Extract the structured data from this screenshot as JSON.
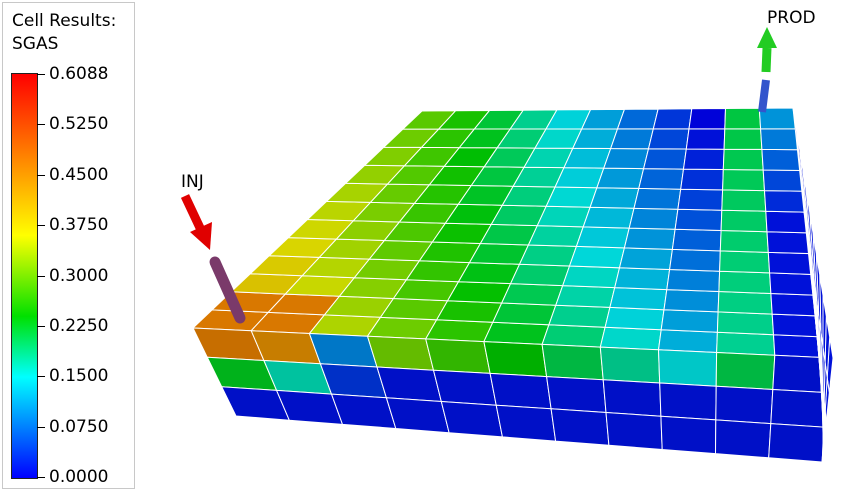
{
  "legend": {
    "title_line1": "Cell Results:",
    "title_line2": "SGAS",
    "ticks": [
      "0.6088",
      "0.5250",
      "0.4500",
      "0.3750",
      "0.3000",
      "0.2250",
      "0.1500",
      "0.0750",
      "0.0000"
    ],
    "colors": [
      "#ff0000",
      "#ff8000",
      "#ffff00",
      "#00e000",
      "#00ffff",
      "#0000ff"
    ]
  },
  "wells": {
    "injector": {
      "label": "INJ",
      "arrow_color": "#e00000",
      "pipe_color": "#7a3a6a"
    },
    "producer": {
      "label": "PROD",
      "arrow_color": "#22cc22",
      "pipe_color": "#3355cc"
    }
  }
}
